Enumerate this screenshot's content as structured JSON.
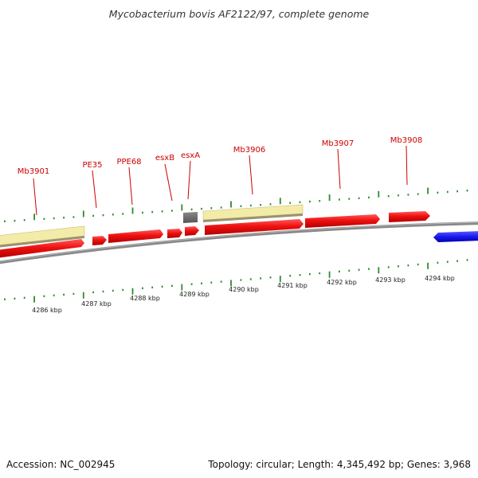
{
  "title": "Mycobacterium bovis AF2122/97, complete genome",
  "gene_labels": [
    "Mb3901",
    "PE35",
    "PPE68",
    "esxB",
    "esxA",
    "Mb3906",
    "Mb3907",
    "Mb3908"
  ],
  "kbp_labels": [
    "4286 kbp",
    "4287 kbp",
    "4288 kbp",
    "4289 kbp",
    "4290 kbp",
    "4291 kbp",
    "4292 kbp",
    "4293 kbp",
    "4294 kbp"
  ],
  "footer": {
    "accession": "Accession: NC_002945",
    "topology": "Topology: circular; Length: 4,345,492 bp; Genes: 3,968"
  },
  "colors": {
    "cds_forward": "#ee1111",
    "gene_band": "#f3eba8",
    "reverse_strand": "#1a1aee",
    "unknown_gene": "#666666",
    "backbone": "#888888",
    "tick": "#2e8b2e",
    "gene_label": "#cc0000"
  }
}
